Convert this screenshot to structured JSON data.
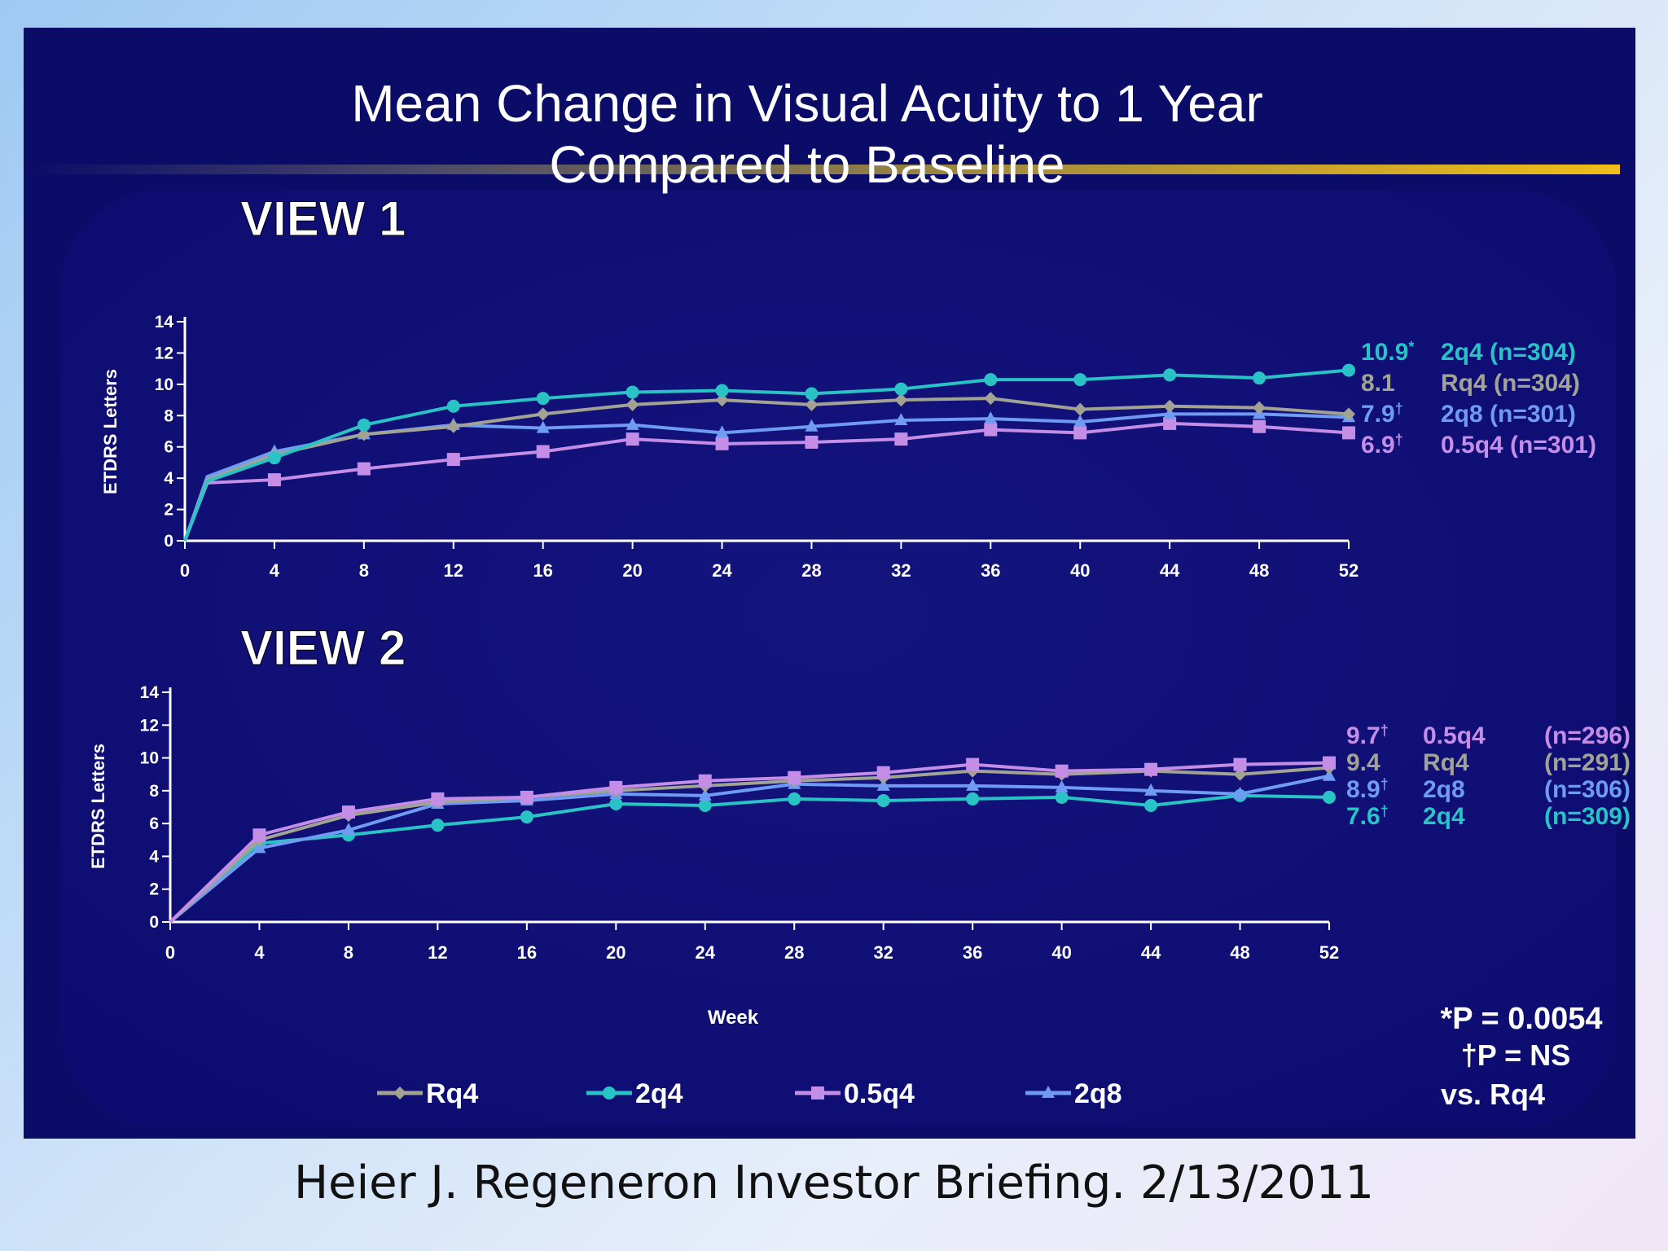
{
  "slide": {
    "title_line1": "Mean Change in Visual Acuity to 1 Year",
    "title_line2": "Compared to Baseline",
    "footnote_line1": "*P = 0.0054",
    "footnote_line2": "†P = NS",
    "footnote_line3": "vs. Rq4",
    "xlabel": "Week",
    "legend": [
      "Rq4",
      "2q4",
      "0.5q4",
      "2q8"
    ]
  },
  "citation": "Heier J. Regeneron Investor Briefing. 2/13/2011",
  "colors": {
    "background": "#0b0b68",
    "Rq4": "#a3a394",
    "2q4": "#29c3c6",
    "0.5q4": "#c58ee6",
    "2q8": "#6f9cf2",
    "title_bar_gold": "#e8b820"
  },
  "chart_data": [
    {
      "type": "line",
      "title": "VIEW 1",
      "xlabel": "",
      "ylabel": "ETDRS Letters",
      "ylim": [
        0,
        14
      ],
      "xlim": [
        0,
        52
      ],
      "xticks": [
        0,
        4,
        8,
        12,
        16,
        20,
        24,
        28,
        32,
        36,
        40,
        44,
        48,
        52
      ],
      "yticks": [
        0,
        2,
        4,
        6,
        8,
        10,
        12,
        14
      ],
      "x": [
        0,
        1,
        4,
        8,
        12,
        16,
        20,
        24,
        28,
        32,
        36,
        40,
        44,
        48,
        52
      ],
      "series": [
        {
          "name": "2q4",
          "values": [
            0,
            3.8,
            5.3,
            7.4,
            8.6,
            9.1,
            9.5,
            9.6,
            9.4,
            9.7,
            10.3,
            10.3,
            10.6,
            10.4,
            10.9
          ],
          "end_value": "10.9",
          "end_mark": "*",
          "end_label": "2q4 (n=304)"
        },
        {
          "name": "Rq4",
          "values": [
            0,
            3.9,
            5.5,
            6.8,
            7.3,
            8.1,
            8.7,
            9.0,
            8.7,
            9.0,
            9.1,
            8.4,
            8.6,
            8.5,
            8.1
          ],
          "end_value": "8.1",
          "end_mark": "",
          "end_label": "Rq4 (n=304)"
        },
        {
          "name": "2q8",
          "values": [
            0,
            4.1,
            5.7,
            6.8,
            7.4,
            7.2,
            7.4,
            6.9,
            7.3,
            7.7,
            7.8,
            7.6,
            8.1,
            8.1,
            7.9
          ],
          "end_value": "7.9",
          "end_mark": "†",
          "end_label": "2q8 (n=301)"
        },
        {
          "name": "0.5q4",
          "values": [
            0,
            3.7,
            3.9,
            4.6,
            5.2,
            5.7,
            6.5,
            6.2,
            6.3,
            6.5,
            7.1,
            6.9,
            7.5,
            7.3,
            6.9
          ],
          "end_value": "6.9",
          "end_mark": "†",
          "end_label": "0.5q4 (n=301)"
        }
      ]
    },
    {
      "type": "line",
      "title": "VIEW 2",
      "xlabel": "Week",
      "ylabel": "ETDRS Letters",
      "ylim": [
        0,
        14
      ],
      "xlim": [
        0,
        52
      ],
      "xticks": [
        0,
        4,
        8,
        12,
        16,
        20,
        24,
        28,
        32,
        36,
        40,
        44,
        48,
        52
      ],
      "yticks": [
        0,
        2,
        4,
        6,
        8,
        10,
        12,
        14
      ],
      "x": [
        0,
        4,
        8,
        12,
        16,
        20,
        24,
        28,
        32,
        36,
        40,
        44,
        48,
        52
      ],
      "series": [
        {
          "name": "0.5q4",
          "values": [
            0,
            5.3,
            6.7,
            7.5,
            7.6,
            8.2,
            8.6,
            8.8,
            9.1,
            9.6,
            9.2,
            9.3,
            9.6,
            9.7
          ],
          "end_value": "9.7",
          "end_mark": "†",
          "end_label": "0.5q4",
          "end_n": "(n=296)"
        },
        {
          "name": "Rq4",
          "values": [
            0,
            5.0,
            6.5,
            7.3,
            7.6,
            8.0,
            8.3,
            8.6,
            8.8,
            9.2,
            9.0,
            9.2,
            9.0,
            9.4
          ],
          "end_value": "9.4",
          "end_mark": "",
          "end_label": "Rq4",
          "end_n": "(n=291)"
        },
        {
          "name": "2q8",
          "values": [
            0,
            4.5,
            5.6,
            7.2,
            7.4,
            7.8,
            7.7,
            8.4,
            8.3,
            8.3,
            8.2,
            8.0,
            7.8,
            8.9
          ],
          "end_value": "8.9",
          "end_mark": "†",
          "end_label": "2q8",
          "end_n": "(n=306)"
        },
        {
          "name": "2q4",
          "values": [
            0,
            4.8,
            5.3,
            5.9,
            6.4,
            7.2,
            7.1,
            7.5,
            7.4,
            7.5,
            7.6,
            7.1,
            7.7,
            7.6
          ],
          "end_value": "7.6",
          "end_mark": "†",
          "end_label": "2q4",
          "end_n": "(n=309)"
        }
      ]
    }
  ]
}
